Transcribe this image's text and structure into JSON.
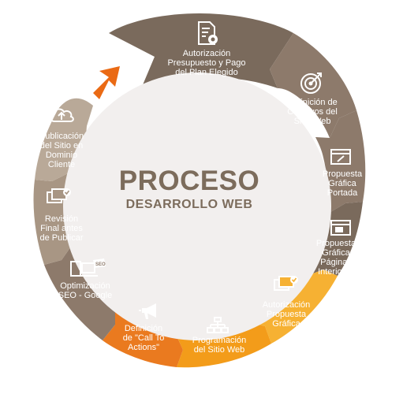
{
  "title": "PROCESO",
  "subtitle": "DESARROLLO WEB",
  "colors": {
    "segment_brown": "#8d7a6b",
    "segment_dark": "#7a6a5c",
    "segment_light": "#b9a998",
    "segment_mid": "#a89684",
    "segment_orange": "#ea7a1f",
    "segment_amber": "#f39c1a",
    "segment_yellow": "#f6b133",
    "center_circle": "#f2efee",
    "arrow": "#ea6a14"
  },
  "steps": [
    {
      "label": [
        "Autorización",
        "Presupuesto y Pago",
        "del Plan Elegido"
      ],
      "icon": "document-gear-icon"
    },
    {
      "label": [
        "Definición de",
        "Objetivos del",
        "Sitio Web"
      ],
      "icon": "target-icon"
    },
    {
      "label": [
        "Propuesta",
        "Gráfica",
        "Portada"
      ],
      "icon": "browser-pen-icon"
    },
    {
      "label": [
        "Propuesta",
        "Gráfica",
        "Páginas",
        "Interiores"
      ],
      "icon": "browser-pages-icon"
    },
    {
      "label": [
        "Autorización",
        "Propuesta",
        "Gráfica"
      ],
      "icon": "screens-check-icon"
    },
    {
      "label": [
        "Programación",
        "del Sitio Web"
      ],
      "icon": "sitemap-icon"
    },
    {
      "label": [
        "Definición",
        "de \"Call To",
        "Actions\""
      ],
      "icon": "megaphone-icon"
    },
    {
      "label": [
        "Optimización",
        "SEO - Google"
      ],
      "icon": "devices-seo-icon"
    },
    {
      "label": [
        "Revisión",
        "Final antes",
        "de Publicar"
      ],
      "icon": "screens-check-icon"
    },
    {
      "label": [
        "Publicación",
        "del Sitio en",
        "Dominio",
        "Cliente"
      ],
      "icon": "cloud-upload-icon"
    }
  ]
}
